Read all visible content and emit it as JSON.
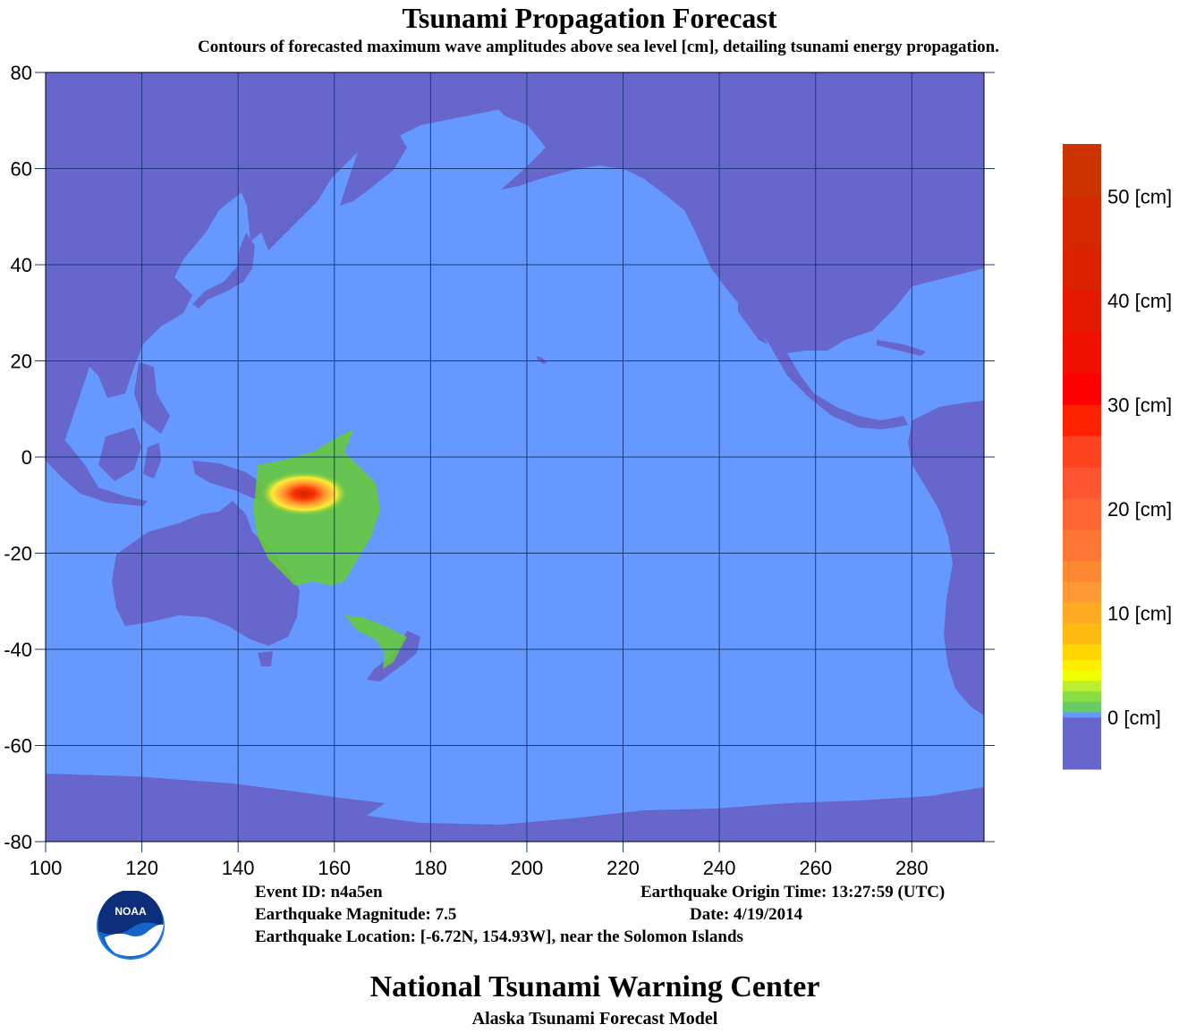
{
  "header": {
    "title": "Tsunami Propagation Forecast",
    "subtitle": "Contours of forecasted maximum wave amplitudes above sea level [cm], detailing tsunami energy propagation."
  },
  "map": {
    "x_range": [
      100,
      295
    ],
    "y_range": [
      -80,
      80
    ],
    "x_ticks": [
      "100",
      "120",
      "140",
      "160",
      "180",
      "200",
      "220",
      "240",
      "260",
      "280"
    ],
    "y_ticks": [
      "80",
      "60",
      "40",
      "20",
      "0",
      "-20",
      "-40",
      "-60",
      "-80"
    ],
    "colors": {
      "ocean": "#6699ff",
      "land": "#6666cc",
      "grid": "#1a3a7a",
      "peak": "#cc3300"
    },
    "epicenter": {
      "lat": -6.72,
      "lon": 154.93
    }
  },
  "colorbar": {
    "labels": [
      "50 [cm]",
      "40 [cm]",
      "30 [cm]",
      "20 [cm]",
      "10 [cm]",
      "0 [cm]"
    ],
    "label_values": [
      50,
      40,
      30,
      20,
      10,
      0
    ],
    "range": [
      -5,
      55
    ]
  },
  "info": {
    "event_id": "Event ID: n4a5en",
    "magnitude": "Earthquake Magnitude: 7.5",
    "location": "Earthquake Location: [-6.72N, 154.93W], near the Solomon Islands",
    "origin_time": "Earthquake Origin Time: 13:27:59 (UTC)",
    "date": "Date: 4/19/2014"
  },
  "logo": {
    "text": "NOAA"
  },
  "footer": {
    "title": "National Tsunami Warning Center",
    "subtitle": "Alaska Tsunami Forecast Model"
  }
}
